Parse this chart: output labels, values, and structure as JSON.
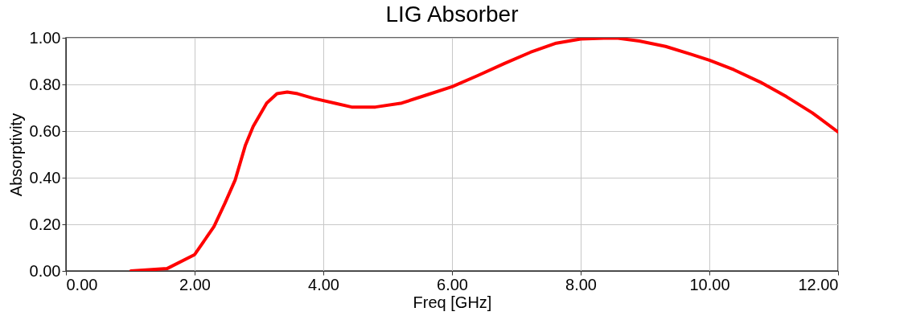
{
  "chart_data": {
    "type": "line",
    "title": "LIG Absorber",
    "xlabel": "Freq [GHz]",
    "ylabel": "Absorptivity",
    "xlim": [
      0,
      12
    ],
    "ylim": [
      0,
      1
    ],
    "xticks": [
      {
        "value": 0,
        "label": "0.00"
      },
      {
        "value": 2,
        "label": "2.00"
      },
      {
        "value": 4,
        "label": "4.00"
      },
      {
        "value": 6,
        "label": "6.00"
      },
      {
        "value": 8,
        "label": "8.00"
      },
      {
        "value": 10,
        "label": "10.00"
      },
      {
        "value": 12,
        "label": "12.00"
      }
    ],
    "yticks": [
      {
        "value": 0,
        "label": "0.00"
      },
      {
        "value": 0.2,
        "label": "0.20"
      },
      {
        "value": 0.4,
        "label": "0.40"
      },
      {
        "value": 0.6,
        "label": "0.60"
      },
      {
        "value": 0.8,
        "label": "0.80"
      },
      {
        "value": 1,
        "label": "1.00"
      }
    ],
    "grid": true,
    "line_style": "solid",
    "series": [
      {
        "color": "#ff0000",
        "x": [
          1.01,
          1.57,
          2.0,
          2.3,
          2.47,
          2.63,
          2.79,
          2.91,
          3.12,
          3.28,
          3.44,
          3.6,
          3.85,
          4.2,
          4.44,
          4.81,
          5.22,
          5.62,
          6.0,
          6.4,
          6.81,
          7.22,
          7.62,
          8.0,
          8.36,
          8.58,
          8.91,
          9.32,
          9.72,
          10.0,
          10.38,
          10.79,
          11.2,
          11.6,
          12.0
        ],
        "values": [
          0.0,
          0.01,
          0.07,
          0.19,
          0.29,
          0.39,
          0.54,
          0.62,
          0.72,
          0.76,
          0.767,
          0.76,
          0.74,
          0.718,
          0.703,
          0.703,
          0.72,
          0.756,
          0.79,
          0.838,
          0.889,
          0.938,
          0.977,
          0.995,
          0.998,
          0.998,
          0.986,
          0.963,
          0.929,
          0.904,
          0.863,
          0.81,
          0.747,
          0.678,
          0.596
        ]
      }
    ]
  }
}
